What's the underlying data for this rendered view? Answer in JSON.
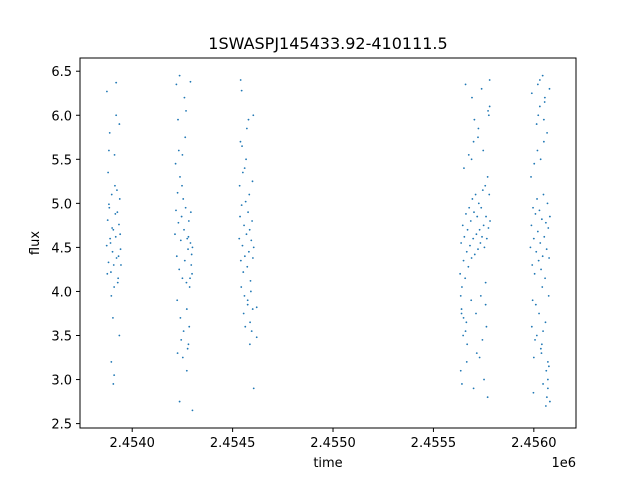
{
  "chart_data": {
    "type": "scatter",
    "title": "1SWASPJ145433.92-410111.5",
    "xlabel": "time",
    "ylabel": "flux",
    "x_offset_label": "1e6",
    "xlim": [
      2453740,
      2456210
    ],
    "ylim": [
      2.45,
      6.65
    ],
    "x_ticks": [
      {
        "value": 2454000,
        "label": "2.4540"
      },
      {
        "value": 2454500,
        "label": "2.4545"
      },
      {
        "value": 2455000,
        "label": "2.4550"
      },
      {
        "value": 2455500,
        "label": "2.4555"
      },
      {
        "value": 2456000,
        "label": "2.4560"
      }
    ],
    "y_ticks": [
      {
        "value": 2.5,
        "label": "2.5"
      },
      {
        "value": 3.0,
        "label": "3.0"
      },
      {
        "value": 3.5,
        "label": "3.5"
      },
      {
        "value": 4.0,
        "label": "4.0"
      },
      {
        "value": 4.5,
        "label": "4.5"
      },
      {
        "value": 5.0,
        "label": "5.0"
      },
      {
        "value": 5.5,
        "label": "5.5"
      },
      {
        "value": 6.0,
        "label": "6.0"
      },
      {
        "value": 6.5,
        "label": "6.5"
      }
    ],
    "grid": false,
    "marker_color": "#1f77b4",
    "series": [
      {
        "x": [
          2453873,
          2453878,
          2453882,
          2453886,
          2453890,
          2453894,
          2453898,
          2453902,
          2453906,
          2453910,
          2453914,
          2453918,
          2453922,
          2453926,
          2453930,
          2453934,
          2453938,
          2453942,
          2453876,
          2453884,
          2453892,
          2453900,
          2453908,
          2453916,
          2453924,
          2453932,
          2453940,
          2453880,
          2453896,
          2453912,
          2453928,
          2453888,
          2453904,
          2453920,
          2453936,
          2453874,
          2453906,
          2453920,
          2453896,
          2453936,
          2453910,
          2453884,
          2453944,
          2454213,
          2454218,
          2454222,
          2454226,
          2454230,
          2454234,
          2454238,
          2454242,
          2454246,
          2454250,
          2454254,
          2454258,
          2454262,
          2454266,
          2454270,
          2454274,
          2454278,
          2454282,
          2454286,
          2454290,
          2454294,
          2454298,
          2454216,
          2454224,
          2454232,
          2454240,
          2454248,
          2454256,
          2454264,
          2454272,
          2454280,
          2454288,
          2454296,
          2454228,
          2454244,
          2454260,
          2454276,
          2454292,
          2454236,
          2454252,
          2454268,
          2454284,
          2454220,
          2454272,
          2454236,
          2454290,
          2454280,
          2454250,
          2454226,
          2454300,
          2454300,
          2454533,
          2454537,
          2454541,
          2454545,
          2454549,
          2454553,
          2454557,
          2454561,
          2454565,
          2454569,
          2454573,
          2454577,
          2454581,
          2454585,
          2454589,
          2454593,
          2454597,
          2454601,
          2454605,
          2454535,
          2454543,
          2454551,
          2454559,
          2454567,
          2454575,
          2454583,
          2454591,
          2454599,
          2454539,
          2454555,
          2454571,
          2454587,
          2454603,
          2454547,
          2454563,
          2454579,
          2454595,
          2454545,
          2454586,
          2454560,
          2454600,
          2454540,
          2454575,
          2454620,
          2454620,
          2454605,
          2455633,
          2455638,
          2455642,
          2455646,
          2455650,
          2455654,
          2455658,
          2455662,
          2455666,
          2455670,
          2455674,
          2455678,
          2455682,
          2455686,
          2455690,
          2455694,
          2455698,
          2455702,
          2455706,
          2455710,
          2455714,
          2455718,
          2455722,
          2455726,
          2455730,
          2455734,
          2455738,
          2455742,
          2455746,
          2455750,
          2455754,
          2455758,
          2455762,
          2455766,
          2455770,
          2455774,
          2455778,
          2455782,
          2455640,
          2455652,
          2455664,
          2455676,
          2455688,
          2455700,
          2455712,
          2455724,
          2455736,
          2455748,
          2455760,
          2455772,
          2455648,
          2455668,
          2455692,
          2455716,
          2455740,
          2455764,
          2455636,
          2455704,
          2455660,
          2455780,
          2455642,
          2455744,
          2455770,
          2455700,
          2455730,
          2455650,
          2455660,
          2455760,
          2455776,
          2455722,
          2455690,
          2455666,
          2455752,
          2455780,
          2455640,
          2455636,
          2455983,
          2455988,
          2455992,
          2455996,
          2456000,
          2456004,
          2456008,
          2456012,
          2456016,
          2456020,
          2456024,
          2456028,
          2456032,
          2456036,
          2456040,
          2456044,
          2456048,
          2456052,
          2456056,
          2456060,
          2456064,
          2456068,
          2456072,
          2456076,
          2456080,
          2455986,
          2455994,
          2456002,
          2456010,
          2456018,
          2456026,
          2456034,
          2456042,
          2456050,
          2456058,
          2456066,
          2456074,
          2455990,
          2456006,
          2456022,
          2456038,
          2456054,
          2456070,
          2456014,
          2456046,
          2456062,
          2456078,
          2455998,
          2456030,
          2456046,
          2456044,
          2456060,
          2456070,
          2456035,
          2456080,
          2456000,
          2456020,
          2456065,
          2456050,
          2456030,
          2456040,
          2456075,
          2456055,
          2456015,
          2456070,
          2455990
        ],
        "y": [
          4.52,
          4.81,
          4.33,
          4.95,
          4.6,
          4.22,
          5.1,
          4.45,
          4.7,
          4.05,
          5.2,
          4.62,
          4.38,
          4.9,
          4.15,
          4.76,
          5.05,
          4.48,
          4.2,
          4.99,
          4.55,
          4.72,
          4.3,
          4.88,
          5.15,
          4.4,
          4.65,
          5.35,
          3.95,
          5.55,
          4.1,
          5.8,
          3.7,
          6.0,
          3.5,
          6.27,
          2.95,
          6.37,
          3.2,
          5.9,
          3.05,
          5.6,
          4.3,
          4.65,
          4.92,
          4.4,
          5.12,
          4.78,
          4.25,
          5.3,
          4.58,
          4.85,
          4.15,
          5.05,
          4.7,
          4.35,
          4.95,
          4.1,
          4.6,
          4.48,
          4.8,
          4.05,
          4.55,
          4.3,
          4.2,
          5.45,
          3.9,
          5.6,
          3.7,
          5.2,
          3.55,
          5.75,
          3.8,
          4.62,
          4.15,
          4.42,
          5.95,
          3.45,
          6.2,
          3.35,
          4.9,
          6.45,
          3.25,
          6.05,
          3.6,
          6.35,
          3.1,
          2.75,
          6.38,
          3.4,
          5.55,
          3.3,
          4.5,
          2.65,
          4.6,
          4.85,
          4.35,
          4.98,
          4.52,
          4.22,
          4.75,
          4.4,
          5.02,
          4.65,
          4.28,
          4.9,
          4.45,
          4.7,
          4.12,
          4.58,
          4.8,
          4.38,
          4.5,
          5.2,
          4.05,
          5.35,
          3.95,
          5.5,
          3.85,
          5.1,
          4.0,
          5.25,
          5.7,
          3.75,
          5.85,
          3.65,
          6.0,
          5.65,
          3.6,
          5.95,
          3.55,
          6.28,
          3.4,
          5.4,
          3.8,
          6.4,
          3.9,
          3.82,
          3.48,
          2.9,
          4.2,
          4.55,
          4.05,
          4.75,
          4.35,
          4.62,
          4.15,
          4.88,
          4.45,
          4.7,
          4.28,
          4.95,
          4.52,
          4.8,
          4.38,
          5.05,
          4.6,
          4.9,
          4.42,
          5.1,
          4.65,
          4.85,
          4.48,
          5.0,
          4.7,
          4.55,
          4.95,
          4.62,
          5.15,
          4.75,
          4.5,
          5.2,
          4.85,
          4.6,
          5.3,
          4.72,
          5.1,
          4.8,
          3.8,
          5.4,
          3.65,
          5.55,
          3.9,
          5.7,
          3.75,
          5.85,
          3.95,
          5.6,
          4.1,
          6.05,
          3.5,
          3.4,
          6.2,
          3.3,
          6.3,
          3.6,
          3.1,
          5.95,
          6.35,
          6.4,
          2.95,
          3.45,
          2.8,
          2.9,
          3.25,
          3.7,
          3.55,
          3.85,
          6.0,
          5.75,
          5.5,
          3.2,
          3.0,
          6.1,
          3.75,
          3.95,
          4.5,
          4.75,
          4.3,
          4.95,
          4.6,
          4.2,
          4.88,
          4.45,
          5.05,
          4.68,
          4.35,
          4.92,
          4.55,
          4.25,
          4.82,
          4.4,
          5.1,
          4.62,
          4.15,
          4.78,
          4.48,
          5.0,
          4.72,
          4.38,
          4.85,
          5.3,
          3.9,
          5.45,
          3.85,
          5.6,
          3.75,
          5.5,
          4.05,
          5.7,
          3.65,
          5.8,
          3.95,
          6.25,
          3.45,
          6.0,
          3.3,
          6.15,
          3.2,
          5.9,
          3.55,
          3.1,
          6.3,
          2.85,
          6.4,
          2.95,
          6.45,
          2.7,
          3.0,
          3.35,
          2.75,
          3.25,
          6.35,
          2.8,
          5.95,
          6.1,
          3.4,
          3.15,
          6.2,
          3.5,
          2.9,
          3.6
        ]
      }
    ]
  }
}
